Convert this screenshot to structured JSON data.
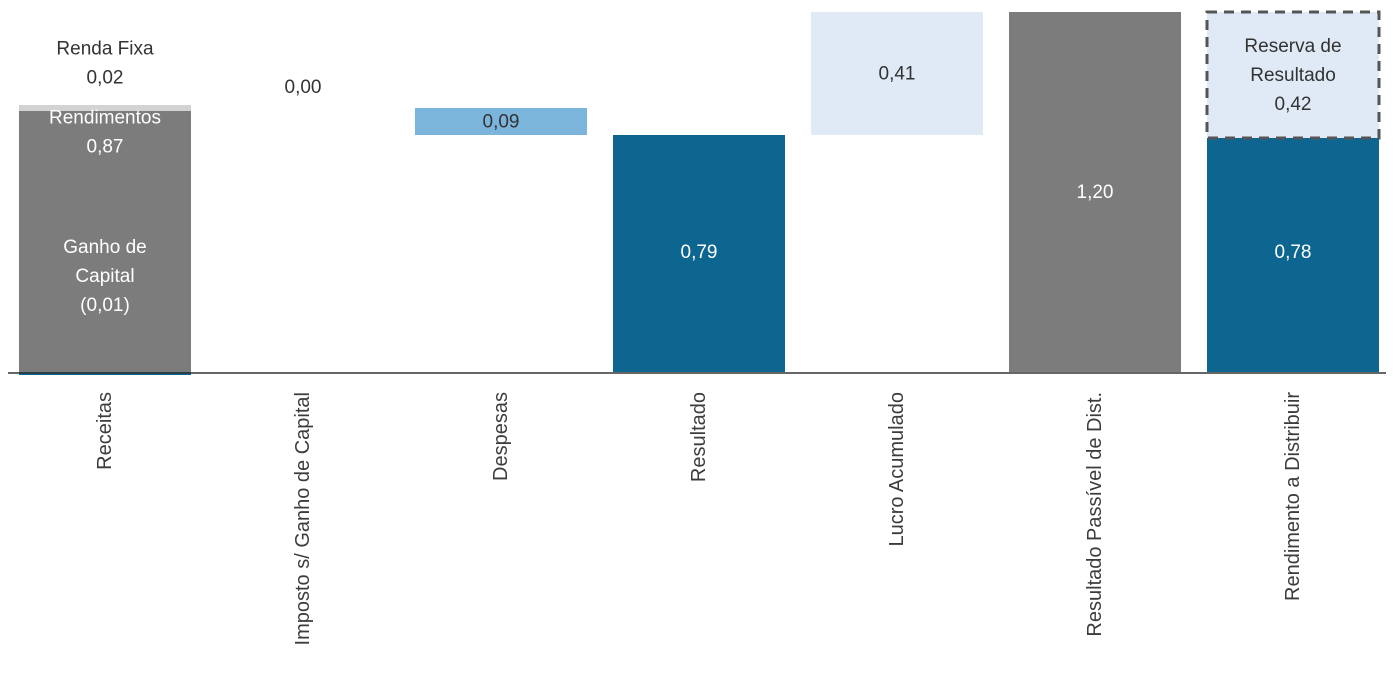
{
  "chart_data": {
    "type": "waterfall",
    "title": "",
    "xlabel": "",
    "ylabel": "",
    "ylim": [
      0,
      1.2
    ],
    "categories": [
      "Receitas",
      "Imposto s/ Ganho de Capital",
      "Despesas",
      "Resultado",
      "Lucro Acumulado",
      "Resultado Passível de Dist.",
      "Rendimento a Distribuir"
    ],
    "bars": [
      {
        "category": "Receitas",
        "segment": "Ganho de Capital",
        "bottom": -0.01,
        "top": 0,
        "color": "#0d6690"
      },
      {
        "category": "Receitas",
        "segment": "Rendimentos",
        "bottom": 0,
        "top": 0.87,
        "color": "#7c7c7c"
      },
      {
        "category": "Receitas",
        "segment": "Renda Fixa",
        "bottom": 0.87,
        "top": 0.89,
        "color": "#d3d3d3"
      },
      {
        "category": "Imposto s/ Ganho de Capital",
        "bottom": 0.89,
        "top": 0.89,
        "color": "#0d6690"
      },
      {
        "category": "Despesas",
        "bottom": 0.79,
        "top": 0.88,
        "color": "#7bb5dc"
      },
      {
        "category": "Resultado",
        "bottom": 0,
        "top": 0.79,
        "color": "#0d6690"
      },
      {
        "category": "Lucro Acumulado",
        "bottom": 0.79,
        "top": 1.2,
        "color": "#dfeaf6"
      },
      {
        "category": "Resultado Passível de Dist.",
        "bottom": 0,
        "top": 1.2,
        "color": "#7c7c7c"
      },
      {
        "category": "Rendimento a Distribuir",
        "segment": "Rendimento",
        "bottom": 0,
        "top": 0.78,
        "color": "#0d6690"
      },
      {
        "category": "Rendimento a Distribuir",
        "segment": "Reserva de Resultado",
        "bottom": 0.78,
        "top": 1.2,
        "color": "#dfeaf6",
        "dashed": true
      }
    ],
    "labels": [
      {
        "lines": [
          "Renda Fixa",
          "0,02"
        ],
        "category": 0,
        "value": 1.03,
        "color": "#333333"
      },
      {
        "lines": [
          "Rendimentos",
          "0,87"
        ],
        "category": 0,
        "value": 0.8,
        "color": "#ffffff"
      },
      {
        "lines": [
          "Ganho de",
          "Capital",
          "(0,01)"
        ],
        "category": 0,
        "value": 0.32,
        "color": "#ffffff"
      },
      {
        "lines": [
          "0,00"
        ],
        "category": 1,
        "value": 0.95,
        "color": "#333333"
      },
      {
        "lines": [
          "0,09"
        ],
        "category": 2,
        "value": 0.835,
        "color": "#333333"
      },
      {
        "lines": [
          "0,79"
        ],
        "category": 3,
        "value": 0.4,
        "color": "#ffffff"
      },
      {
        "lines": [
          "0,41"
        ],
        "category": 4,
        "value": 0.995,
        "color": "#333333"
      },
      {
        "lines": [
          "1,20"
        ],
        "category": 5,
        "value": 0.6,
        "color": "#ffffff"
      },
      {
        "lines": [
          "0,78"
        ],
        "category": 6,
        "value": 0.4,
        "color": "#ffffff"
      },
      {
        "lines": [
          "Reserva de",
          "Resultado",
          "0,42"
        ],
        "category": 6,
        "value": 0.99,
        "color": "#333333"
      }
    ],
    "legend": "none",
    "grid": false
  }
}
